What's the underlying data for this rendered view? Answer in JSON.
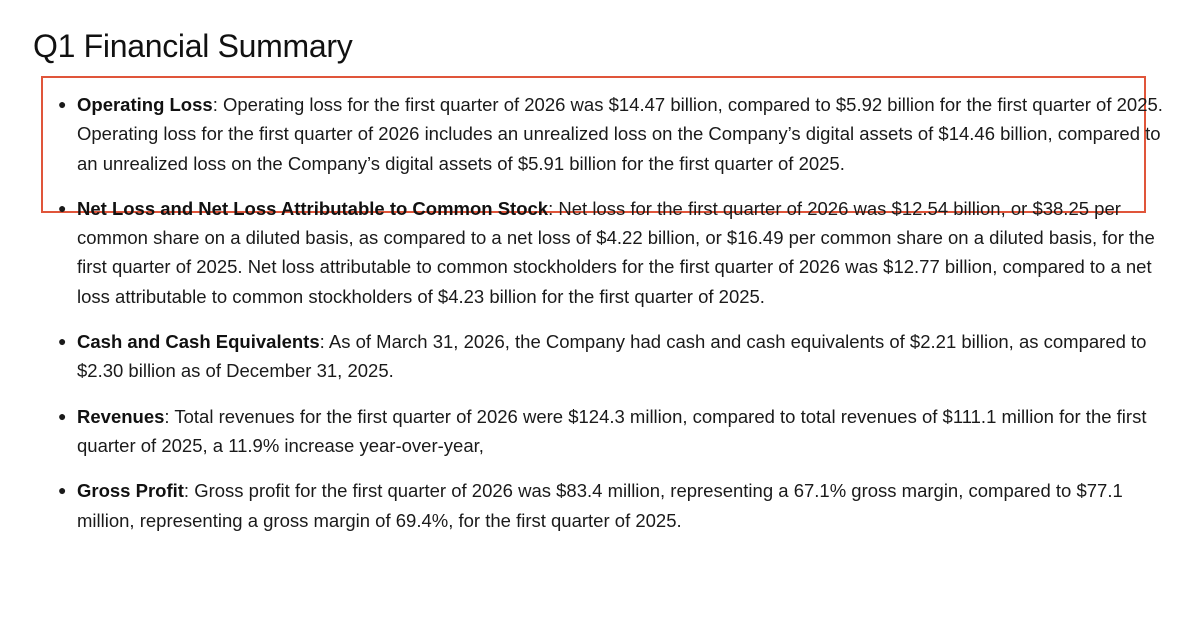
{
  "title": "Q1 Financial Summary",
  "highlight_color": "#e0553a",
  "items": [
    {
      "term": "Operating Loss",
      "text": ": Operating loss for the first quarter of 2026 was $14.47 billion, compared to $5.92 billion for the first quarter of 2025. Operating loss for the first quarter of 2026 includes an unrealized loss on the Company’s digital assets of $14.46 billion, compared to an unrealized loss on the Company’s digital assets of $5.91 billion for the first quarter of 2025.",
      "highlighted": true
    },
    {
      "term": "Net Loss and Net Loss Attributable to Common Stock",
      "text": ": Net loss for the first quarter of 2026 was $12.54 billion, or $38.25 per common share on a diluted basis, as compared to a net loss of $4.22 billion, or $16.49 per common share on a diluted basis, for the first quarter of 2025. Net loss attributable to common stockholders for the first quarter of 2026 was $12.77 billion, compared to a net loss attributable to common stockholders of $4.23 billion for the first quarter of 2025.",
      "highlighted": false
    },
    {
      "term": "Cash and Cash Equivalents",
      "text": ": As of March 31, 2026, the Company had cash and cash equivalents of $2.21 billion, as compared to $2.30 billion as of December 31, 2025.",
      "highlighted": false
    },
    {
      "term": "Revenues",
      "text": ": Total revenues for the first quarter of 2026 were $124.3 million, compared to total revenues of $111.1 million for the first quarter of 2025, a 11.9% increase year-over-year,",
      "highlighted": false
    },
    {
      "term": "Gross Profit",
      "text": ": Gross profit for the first quarter of 2026 was $83.4 million, representing a 67.1% gross margin, compared to $77.1 million, representing a gross margin of 69.4%, for the first quarter of 2025.",
      "highlighted": false
    }
  ]
}
